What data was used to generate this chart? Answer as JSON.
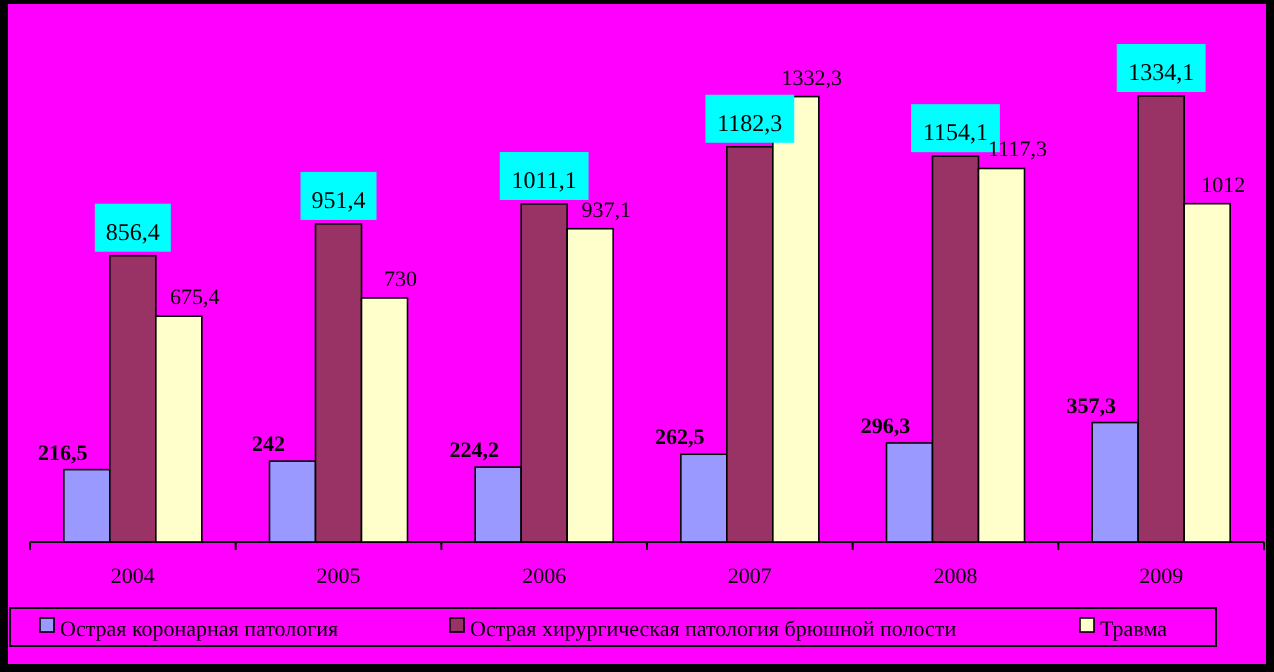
{
  "chart_data": {
    "type": "bar",
    "categories": [
      "2004",
      "2005",
      "2006",
      "2007",
      "2008",
      "2009"
    ],
    "series": [
      {
        "name": "Острая коронарная патология",
        "color": "#9999ff",
        "values": [
          216.5,
          242,
          224.2,
          262.5,
          296.3,
          357.3
        ],
        "value_labels": [
          "216,5",
          "242",
          "224,2",
          "262,5",
          "296,3",
          "357,3"
        ]
      },
      {
        "name": "Острая хирургическая патология брюшной полости",
        "color": "#993366",
        "values": [
          856.4,
          951.4,
          1011.1,
          1182.3,
          1154.1,
          1334.1
        ],
        "value_labels": [
          "856,4",
          "951,4",
          "1011,1",
          "1182,3",
          "1154,1",
          "1334,1"
        ]
      },
      {
        "name": "Травма",
        "color": "#ffffcc",
        "values": [
          675.4,
          730,
          937.1,
          1332.3,
          1117.3,
          1012
        ],
        "value_labels": [
          "675,4",
          "730",
          "937,1",
          "1332,3",
          "1117,3",
          "1012"
        ]
      }
    ],
    "legend": "bottom"
  }
}
